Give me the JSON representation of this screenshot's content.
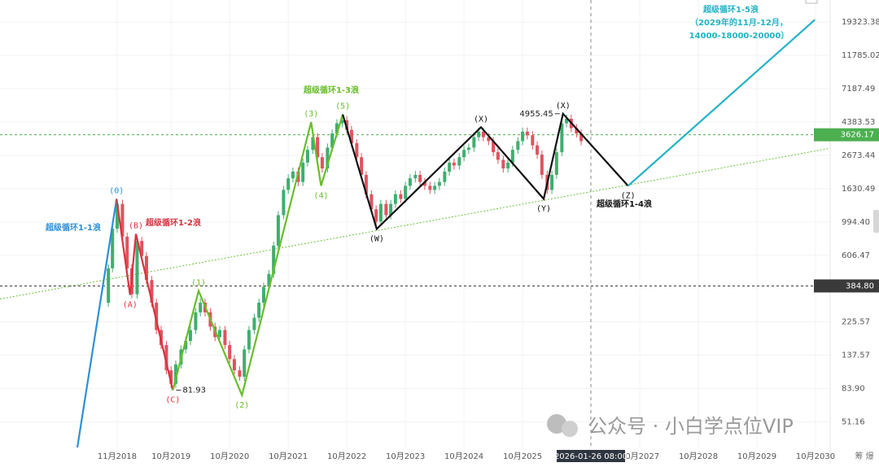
{
  "chart_data": {
    "type": "candlestick",
    "log_scale": true,
    "grid": true,
    "xlim": [
      2016.83,
      2031
    ],
    "ylim": [
      35,
      26800
    ],
    "xticks": [
      {
        "value": 2018.83,
        "label": "11月2018"
      },
      {
        "value": 2019.75,
        "label": "10月2019"
      },
      {
        "value": 2020.75,
        "label": "10月2020"
      },
      {
        "value": 2021.75,
        "label": "10月2021"
      },
      {
        "value": 2022.75,
        "label": "10月2022"
      },
      {
        "value": 2023.75,
        "label": "10月2023"
      },
      {
        "value": 2024.75,
        "label": "10月2024"
      },
      {
        "value": 2025.75,
        "label": "10月2025"
      },
      {
        "value": 2027.75,
        "label": "10月2027"
      },
      {
        "value": 2028.75,
        "label": "10月2028"
      },
      {
        "value": 2029.75,
        "label": "10月2029"
      },
      {
        "value": 2030.75,
        "label": "10月2030"
      }
    ],
    "yticks": [
      19323.38,
      11785.02,
      7187.49,
      4383.53,
      2673.44,
      1630.49,
      {
        "value": 994.4,
        "label": "994.40"
      },
      606.47,
      225.57,
      137.57,
      {
        "value": 83.9,
        "label": "83.90"
      },
      51.16
    ],
    "price": {
      "up_color": "#3fae6e",
      "down_color": "#e0525f",
      "x": [
        2018.6,
        2018.68,
        2018.75,
        2018.83,
        2018.92,
        2019.0,
        2019.08,
        2019.17,
        2019.25,
        2019.33,
        2019.42,
        2019.5,
        2019.58,
        2019.67,
        2019.75,
        2019.83,
        2019.92,
        2020.0,
        2020.08,
        2020.17,
        2020.25,
        2020.33,
        2020.42,
        2020.5,
        2020.58,
        2020.67,
        2020.75,
        2020.83,
        2020.92,
        2021.0,
        2021.08,
        2021.17,
        2021.25,
        2021.33,
        2021.42,
        2021.5,
        2021.58,
        2021.67,
        2021.75,
        2021.83,
        2021.92,
        2022.0,
        2022.08,
        2022.17,
        2022.25,
        2022.33,
        2022.42,
        2022.5,
        2022.58,
        2022.67,
        2022.75,
        2022.83,
        2022.92,
        2023.0,
        2023.08,
        2023.17,
        2023.25,
        2023.33,
        2023.42,
        2023.5,
        2023.58,
        2023.67,
        2023.75,
        2023.83,
        2023.92,
        2024.0,
        2024.08,
        2024.17,
        2024.25,
        2024.33,
        2024.42,
        2024.5,
        2024.58,
        2024.67,
        2024.75,
        2024.83,
        2024.92,
        2025.0,
        2025.08,
        2025.17,
        2025.25,
        2025.33,
        2025.42,
        2025.5,
        2025.58,
        2025.67,
        2025.75,
        2025.83,
        2025.92,
        2026.0,
        2026.08,
        2026.17,
        2026.25,
        2026.33,
        2026.42,
        2026.5,
        2026.58,
        2026.67,
        2026.75
      ],
      "values": [
        300,
        500,
        900,
        1300,
        800,
        500,
        340,
        750,
        600,
        420,
        300,
        200,
        160,
        110,
        90,
        120,
        150,
        170,
        200,
        260,
        300,
        260,
        210,
        180,
        200,
        160,
        130,
        110,
        100,
        150,
        200,
        240,
        300,
        380,
        460,
        700,
        1100,
        1600,
        1900,
        2100,
        1800,
        2400,
        2900,
        3500,
        2600,
        2200,
        3000,
        3700,
        4300,
        4500,
        3900,
        3200,
        2600,
        2000,
        1500,
        1200,
        1000,
        1300,
        1100,
        1300,
        1500,
        1400,
        1700,
        1900,
        2000,
        1800,
        1700,
        1600,
        1700,
        1800,
        2100,
        2400,
        2300,
        2600,
        2900,
        3000,
        3500,
        3800,
        3500,
        3300,
        2800,
        2500,
        2200,
        2400,
        2900,
        3300,
        3800,
        3600,
        3100,
        2700,
        2000,
        1600,
        2000,
        2800,
        4300,
        4600,
        4000,
        3700,
        3300
      ]
    },
    "series": [
      {
        "name": "超级循环1-1浪",
        "color": "#2e8fd8",
        "x": [
          2018.15,
          2018.82
        ],
        "values": [
          35,
          1401
        ],
        "labels": [
          null,
          "(0)"
        ]
      },
      {
        "name": "超级循环1-2浪",
        "color": "#d9333f",
        "x": [
          2018.82,
          2019.05,
          2019.15,
          2019.78
        ],
        "values": [
          1401,
          336.6,
          833,
          81.93
        ],
        "labels": [
          null,
          "(A)",
          "(B)",
          "(C)"
        ]
      },
      {
        "name": "超级循环1-3浪",
        "color": "#68bd2a",
        "x": [
          2019.78,
          2020.22,
          2020.96,
          2022.14,
          2022.31,
          2022.68
        ],
        "values": [
          81.93,
          358,
          76,
          4380,
          1701,
          4900
        ],
        "labels": [
          null,
          "(1)",
          "(2)",
          "(3)",
          "(4)",
          "(5)"
        ]
      },
      {
        "name": "超级循环1-4浪",
        "color": "#111111",
        "x": [
          2022.68,
          2023.26,
          2025.04,
          2026.11,
          2026.44,
          2027.55
        ],
        "values": [
          4900,
          896,
          4060,
          1400,
          4955.45,
          1700
        ],
        "labels": [
          null,
          "(W)",
          "(X)",
          "(Y)",
          "(X)",
          "(Z)"
        ]
      },
      {
        "name": "超级循环1-5浪",
        "color": "#22b3c4",
        "x": [
          2027.55,
          2030.74
        ],
        "values": [
          1700,
          20000
        ],
        "labels": [
          null,
          null
        ],
        "note": [
          "（2029年的11月-12月，",
          "14000-18000-20000）"
        ]
      }
    ],
    "price_notes": [
      {
        "x": 2019.78,
        "y": 81.93,
        "side": "right"
      },
      {
        "x": 2026.44,
        "y": 4955.45,
        "side": "left"
      }
    ],
    "trendline": {
      "color": "#6cc13a",
      "x": [
        2016.83,
        2031
      ],
      "values": [
        317,
        2967
      ]
    },
    "hlines": [
      {
        "value": 3626.17,
        "label": "3626.17",
        "color": "#4caf50"
      },
      {
        "value": 384.8,
        "label": "384.80",
        "color": "#3a3a3a"
      }
    ],
    "crosshair": {
      "label": "2026-01-26 08:00"
    },
    "watermark": "公众号 · 小白学点位VIP",
    "corner_text": "筹 爆"
  }
}
